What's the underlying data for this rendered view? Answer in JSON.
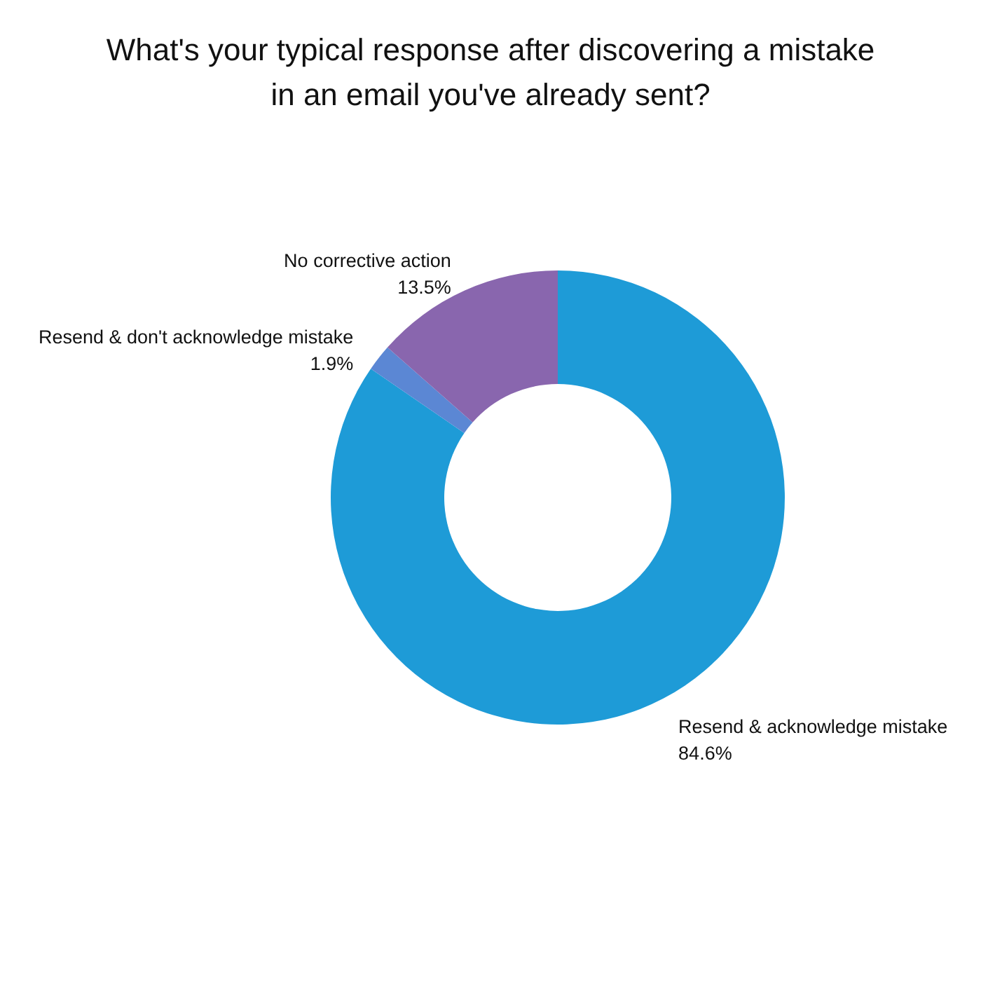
{
  "chart_data": {
    "type": "donut",
    "title": "What's your typical response after discovering a mistake in an email you've already sent?",
    "categories": [
      "Resend & acknowledge mistake",
      "Resend & don't acknowledge mistake",
      "No corrective action"
    ],
    "values": [
      84.6,
      1.9,
      13.5
    ],
    "value_labels": [
      "84.6%",
      "1.9%",
      "13.5%"
    ],
    "colors": [
      "#1e9bd7",
      "#5b87d4",
      "#8966ae"
    ],
    "legend": false
  }
}
